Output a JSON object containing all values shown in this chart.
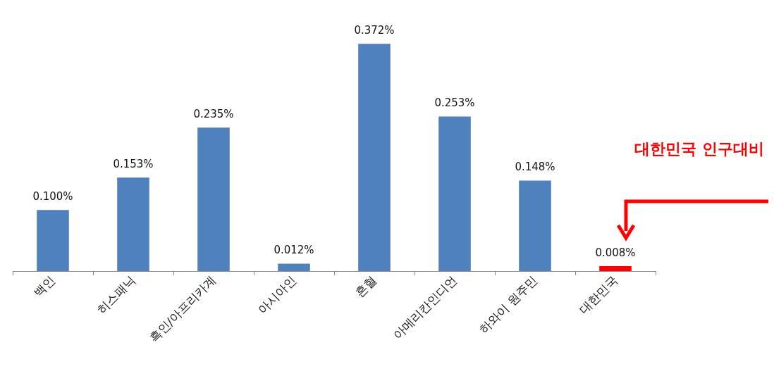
{
  "chart_data": {
    "type": "bar",
    "categories": [
      "백인",
      "히스패닉",
      "흑인/아프리카계",
      "아시아인",
      "혼혈",
      "아메리칸인디언",
      "하와이 원주민",
      "대한민국"
    ],
    "values": [
      0.1,
      0.153,
      0.235,
      0.012,
      0.372,
      0.253,
      0.148,
      0.008
    ],
    "colors": [
      "#4f81bd",
      "#4f81bd",
      "#4f81bd",
      "#4f81bd",
      "#4f81bd",
      "#4f81bd",
      "#4f81bd",
      "#ff0000"
    ],
    "value_labels": [
      "0.100%",
      "0.153%",
      "0.235%",
      "0.012%",
      "0.372%",
      "0.253%",
      "0.148%",
      "0.008%"
    ],
    "annotations": [
      "대한민국 인구대비"
    ],
    "tick_labels": "x"
  }
}
